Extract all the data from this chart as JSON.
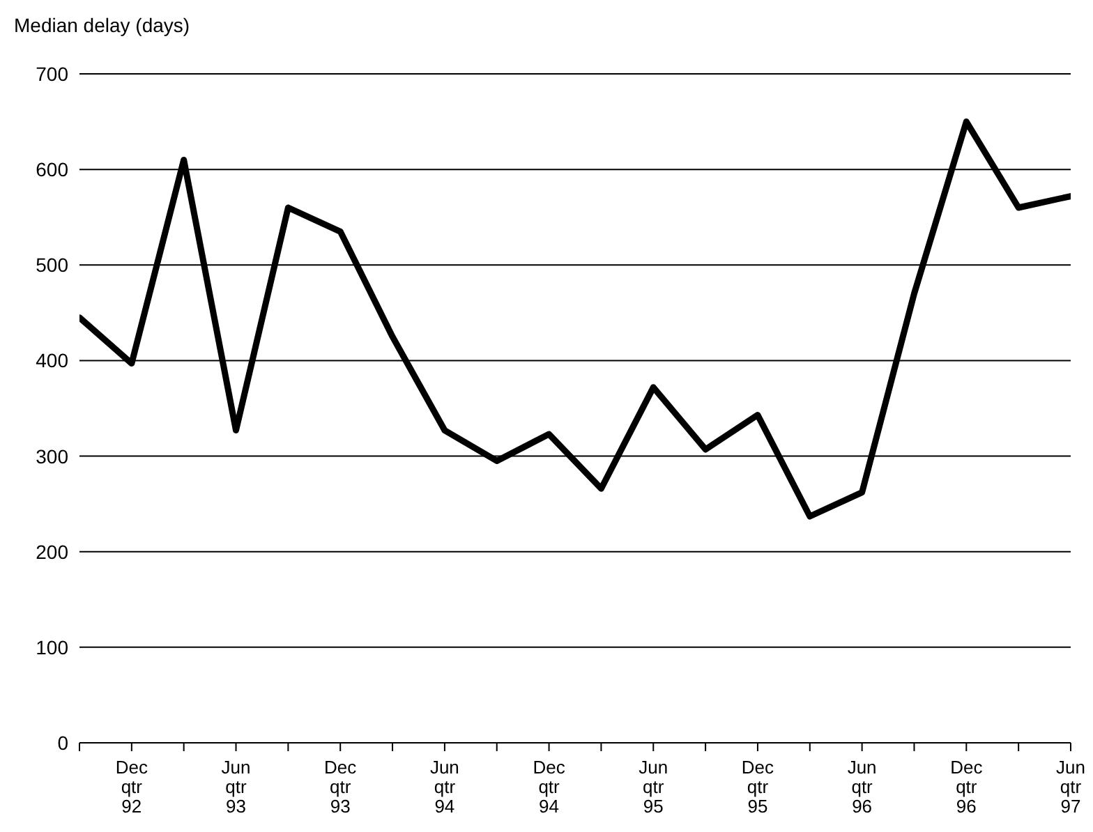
{
  "chart_data": {
    "type": "line",
    "ylabel": "Median delay (days)",
    "categories": [
      null,
      "Dec qtr 92",
      null,
      "Jun qtr 93",
      null,
      "Dec qtr 93",
      null,
      "Jun qtr 94",
      null,
      "Dec qtr 94",
      null,
      "Jun qtr 95",
      null,
      "Dec qtr 95",
      null,
      "Jun qtr 96",
      null,
      "Dec qtr 96",
      null,
      "Jun qtr 97"
    ],
    "series": [
      {
        "color": "#000000",
        "values": [
          445,
          397,
          610,
          327,
          560,
          535,
          425,
          327,
          295,
          323,
          266,
          372,
          307,
          343,
          237,
          262,
          470,
          650,
          560,
          572
        ]
      }
    ],
    "ylim": [
      0,
      700
    ],
    "yticks": [
      0,
      100,
      200,
      300,
      400,
      500,
      600,
      700
    ],
    "grid": "y",
    "marker": "none",
    "line_style": "solid",
    "legend": false
  }
}
